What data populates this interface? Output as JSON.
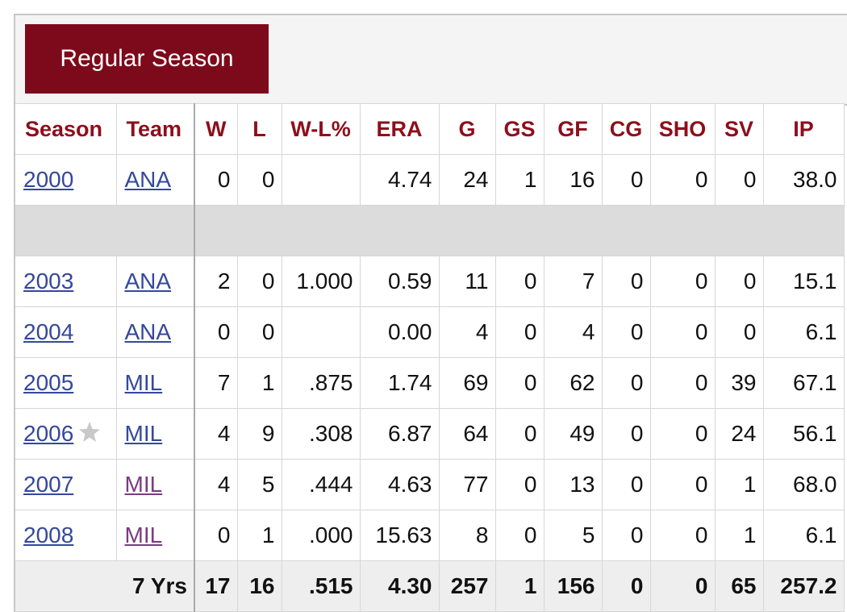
{
  "header": {
    "button": "Regular Season"
  },
  "table": {
    "columns": [
      "Season",
      "Team",
      "W",
      "L",
      "W-L%",
      "ERA",
      "G",
      "GS",
      "GF",
      "CG",
      "SHO",
      "SV",
      "IP"
    ],
    "rows": [
      [
        "2000",
        "ANA",
        "0",
        "0",
        null,
        "4.74",
        "24",
        "1",
        "16",
        "0",
        "0",
        "0",
        "38.0"
      ],
      [
        "2003",
        "ANA",
        "2",
        "0",
        "1.000",
        "0.59",
        "11",
        "0",
        "7",
        "0",
        "0",
        "0",
        "15.1"
      ],
      [
        "2004",
        "ANA",
        "0",
        "0",
        null,
        "0.00",
        "4",
        "0",
        "4",
        "0",
        "0",
        "0",
        "6.1"
      ],
      [
        "2005",
        "MIL",
        "7",
        "1",
        ".875",
        "1.74",
        "69",
        "0",
        "62",
        "0",
        "0",
        "39",
        "67.1"
      ],
      [
        "2006",
        "MIL",
        "4",
        "9",
        ".308",
        "6.87",
        "64",
        "0",
        "49",
        "0",
        "0",
        "24",
        "56.1"
      ],
      [
        "2007",
        "MIL",
        "4",
        "5",
        ".444",
        "4.63",
        "77",
        "0",
        "13",
        "0",
        "0",
        "1",
        "68.0"
      ],
      [
        "2008",
        "MIL",
        "0",
        "1",
        ".000",
        "15.63",
        "8",
        "0",
        "5",
        "0",
        "0",
        "1",
        "6.1"
      ]
    ],
    "totals": {
      "label": "7 Yrs",
      "values": [
        "17",
        "16",
        ".515",
        "4.30",
        "257",
        "1",
        "156",
        "0",
        "0",
        "65",
        "257.2"
      ]
    }
  }
}
